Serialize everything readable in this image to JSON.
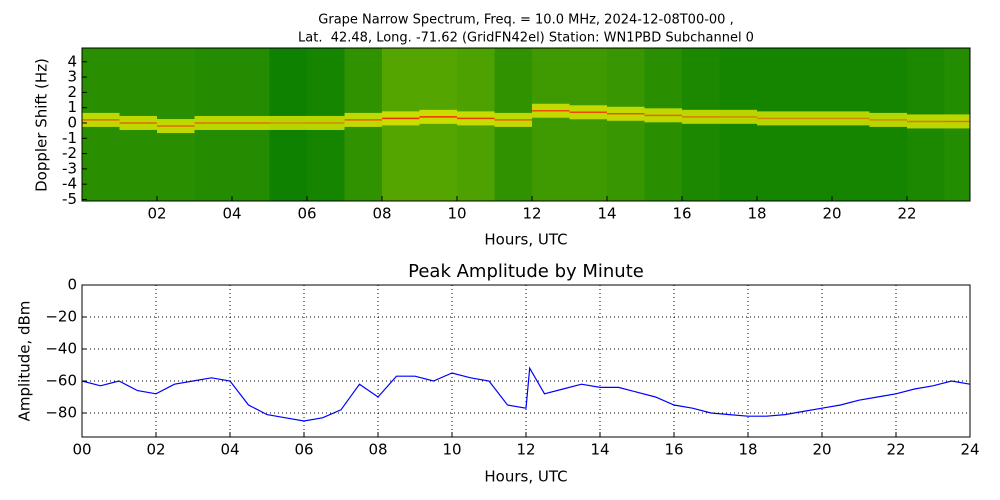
{
  "chart_data": [
    {
      "type": "spectrogram",
      "title": [
        "Grape Narrow Spectrum, Freq. = 10.0 MHz, 2024-12-08T00-00 ,",
        "Lat.  42.48, Long. -71.62 (GridFN42el) Station: WN1PBD Subchannel 0"
      ],
      "x_label": "Hours, UTC",
      "y_label": "Doppler Shift (Hz)",
      "x": [
        0,
        1,
        2,
        3,
        4,
        5,
        6,
        7,
        8,
        9,
        10,
        11,
        12,
        13,
        14,
        15,
        16,
        17,
        18,
        19,
        20,
        21,
        22,
        23
      ],
      "series": [
        {
          "name": "intensity",
          "values": [
            0.3,
            0.3,
            0.3,
            0.25,
            0.25,
            0.1,
            0.15,
            0.35,
            0.6,
            0.6,
            0.55,
            0.35,
            0.45,
            0.45,
            0.4,
            0.3,
            0.2,
            0.15,
            0.15,
            0.15,
            0.15,
            0.15,
            0.2,
            0.25
          ]
        },
        {
          "name": "doppler",
          "color": "#ff0000",
          "values": [
            0.2,
            0,
            -0.2,
            0,
            0,
            0,
            0,
            0.2,
            0.3,
            0.4,
            0.3,
            0.2,
            0.8,
            0.7,
            0.6,
            0.5,
            0.4,
            0.4,
            0.3,
            0.3,
            0.3,
            0.2,
            0.1,
            0.1
          ]
        }
      ],
      "xlim": [
        0,
        23.68
      ],
      "ylim": [
        -5.1,
        4.9
      ],
      "xticks": [
        {
          "value": 2,
          "label": "02"
        },
        {
          "value": 4,
          "label": "04"
        },
        {
          "value": 6,
          "label": "06"
        },
        {
          "value": 8,
          "label": "08"
        },
        {
          "value": 10,
          "label": "10"
        },
        {
          "value": 12,
          "label": "12"
        },
        {
          "value": 14,
          "label": "14"
        },
        {
          "value": 16,
          "label": "16"
        },
        {
          "value": 18,
          "label": "18"
        },
        {
          "value": 20,
          "label": "20"
        },
        {
          "value": 22,
          "label": "22"
        }
      ],
      "yticks": [
        -5,
        -4,
        -3,
        -2,
        -1,
        0,
        1,
        2,
        3,
        4
      ],
      "grid": false
    },
    {
      "type": "line",
      "title": "Peak Amplitude by Minute",
      "x_label": "Hours, UTC",
      "y_label": "Amplitude, dBm",
      "x": [
        0,
        0.5,
        1,
        1.5,
        2,
        2.5,
        3,
        3.5,
        4,
        4.5,
        5,
        5.5,
        6,
        6.5,
        7,
        7.5,
        8,
        8.5,
        9,
        9.5,
        10,
        10.5,
        11,
        11.5,
        12,
        12.1,
        12.5,
        13,
        13.5,
        14,
        14.5,
        15,
        15.5,
        16,
        16.5,
        17,
        17.5,
        18,
        18.5,
        19,
        19.5,
        20,
        20.5,
        21,
        21.5,
        22,
        22.5,
        23,
        23.5,
        24
      ],
      "series": [
        {
          "name": "amplitude",
          "color": "#0000ff",
          "values": [
            -60,
            -63,
            -60,
            -66,
            -68,
            -62,
            -60,
            -58,
            -60,
            -75,
            -81,
            -83,
            -85,
            -83,
            -78,
            -62,
            -70,
            -57,
            -57,
            -60,
            -55,
            -58,
            -60,
            -75,
            -77,
            -52,
            -68,
            -65,
            -62,
            -64,
            -64,
            -67,
            -70,
            -75,
            -77,
            -80,
            -81,
            -82,
            -82,
            -81,
            -79,
            -77,
            -75,
            -72,
            -70,
            -68,
            -65,
            -63,
            -60,
            -62
          ]
        }
      ],
      "xlim": [
        0,
        24
      ],
      "ylim": [
        -95,
        0
      ],
      "xticks": [
        {
          "value": 0,
          "label": "00"
        },
        {
          "value": 2,
          "label": "02"
        },
        {
          "value": 4,
          "label": "04"
        },
        {
          "value": 6,
          "label": "06"
        },
        {
          "value": 8,
          "label": "08"
        },
        {
          "value": 10,
          "label": "10"
        },
        {
          "value": 12,
          "label": "12"
        },
        {
          "value": 14,
          "label": "14"
        },
        {
          "value": 16,
          "label": "16"
        },
        {
          "value": 18,
          "label": "18"
        },
        {
          "value": 20,
          "label": "20"
        },
        {
          "value": 22,
          "label": "22"
        },
        {
          "value": 24,
          "label": "24"
        }
      ],
      "yticks": [
        0,
        {
          "value": -20,
          "label": "−20"
        },
        {
          "value": -40,
          "label": "−40"
        },
        {
          "value": -60,
          "label": "−60"
        },
        {
          "value": -80,
          "label": "−80"
        }
      ],
      "grid": true
    }
  ]
}
